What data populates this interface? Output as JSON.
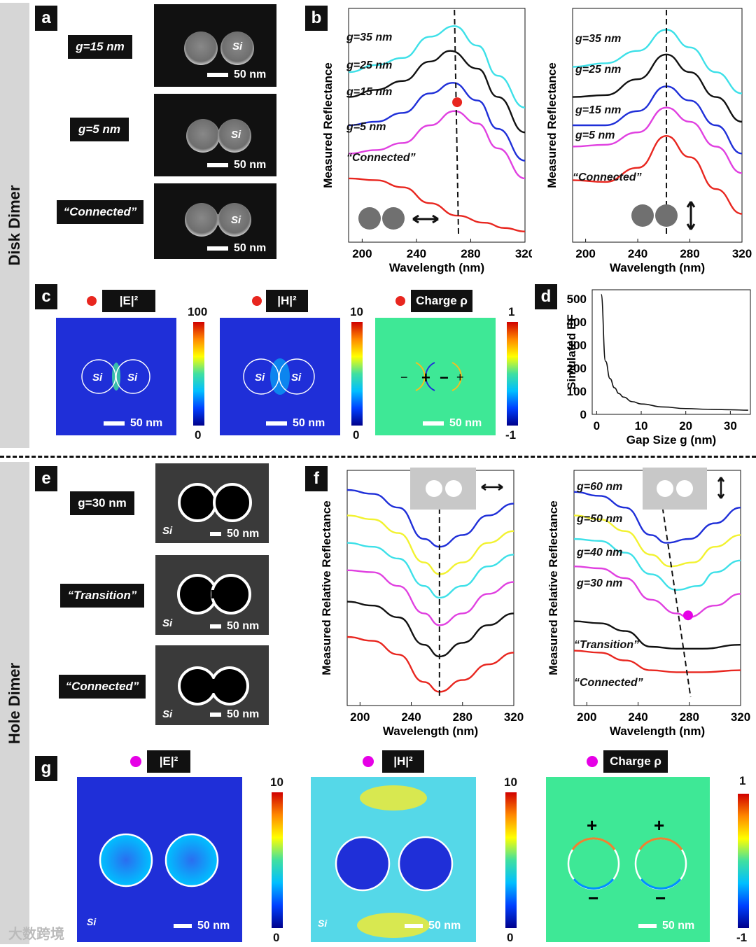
{
  "sections": {
    "top": "Disk Dimer",
    "bottom": "Hole Dimer"
  },
  "panels": {
    "a": "a",
    "b": "b",
    "c": "c",
    "d": "d",
    "e": "e",
    "f": "f",
    "g": "g"
  },
  "a_tags": [
    "g=15 nm",
    "g=5 nm",
    "“Connected”"
  ],
  "si": "Si",
  "scale": "50 nm",
  "e_tags": [
    "g=30 nm",
    "“Transition”",
    "“Connected”"
  ],
  "fields": {
    "e": "|E|²",
    "h": "|H|²",
    "rho": "Charge ρ"
  },
  "c_cbars": [
    {
      "max": "100",
      "min": "0"
    },
    {
      "max": "10",
      "min": "0"
    },
    {
      "max": "1",
      "min": "-1"
    }
  ],
  "g_cbars": [
    {
      "max": "10",
      "min": "0"
    },
    {
      "max": "10",
      "min": "0"
    },
    {
      "max": "1",
      "min": "-1"
    }
  ],
  "charges": {
    "plus": "+",
    "minus": "−"
  },
  "watermark": "大数跨境",
  "colors": {
    "red": "#e8261f",
    "black": "#111111",
    "blue": "#1f2fd8",
    "magenta": "#e040e0",
    "cyan": "#3de0e8",
    "yellow": "#f2f230",
    "dot_c": "#e8261f",
    "dot_g": "#e600e6"
  },
  "chart_data": [
    {
      "type": "line",
      "id": "b-left",
      "xlabel": "Wavelength (nm)",
      "ylabel": "Measured Reflectance",
      "xticks": [
        200,
        240,
        280,
        320
      ],
      "xlim": [
        190,
        320
      ],
      "labels": [
        "g=35 nm",
        "g=25 nm",
        "g=15 nm",
        "g=5 nm",
        "“Connected”"
      ],
      "series": [
        {
          "name": "g=35 nm",
          "color": "cyan",
          "x": [
            190,
            210,
            230,
            250,
            268,
            285,
            300,
            320
          ],
          "y": [
            8.6,
            9.0,
            9.4,
            10.6,
            11.2,
            10.1,
            8.4,
            6.6
          ]
        },
        {
          "name": "g=25 nm",
          "color": "black",
          "x": [
            190,
            210,
            230,
            250,
            265,
            285,
            300,
            320
          ],
          "y": [
            7.2,
            7.6,
            8.1,
            9.2,
            9.8,
            8.8,
            7.2,
            5.2
          ]
        },
        {
          "name": "g=15 nm",
          "color": "blue",
          "x": [
            190,
            210,
            230,
            250,
            267,
            285,
            300,
            320
          ],
          "y": [
            5.6,
            5.8,
            6.3,
            7.4,
            8.0,
            7.0,
            5.4,
            3.6
          ]
        },
        {
          "name": "g=5 nm",
          "color": "magenta",
          "x": [
            190,
            210,
            230,
            250,
            268,
            285,
            300,
            320
          ],
          "y": [
            4.0,
            4.2,
            4.6,
            5.6,
            6.4,
            5.7,
            4.3,
            2.6
          ]
        },
        {
          "name": "“Connected”",
          "color": "red",
          "x": [
            190,
            210,
            230,
            250,
            270,
            290,
            305,
            320
          ],
          "y": [
            2.6,
            2.5,
            2.1,
            1.2,
            0.5,
            0.1,
            -0.2,
            -0.4
          ]
        }
      ],
      "marker": {
        "x": 270,
        "y": 6.9
      },
      "dash_x": [
        268,
        271
      ]
    },
    {
      "type": "line",
      "id": "b-right",
      "xlabel": "Wavelength (nm)",
      "ylabel": "Measured Reflectance",
      "xticks": [
        200,
        240,
        280,
        320
      ],
      "xlim": [
        190,
        320
      ],
      "labels": [
        "g=35 nm",
        "g=25 nm",
        "g=15 nm",
        "g=5 nm",
        "“Connected”"
      ],
      "series": [
        {
          "name": "g=35 nm",
          "color": "cyan",
          "x": [
            190,
            215,
            240,
            262,
            280,
            300,
            320
          ],
          "y": [
            8.9,
            9.1,
            9.8,
            11.0,
            10.0,
            8.6,
            7.4
          ]
        },
        {
          "name": "g=25 nm",
          "color": "black",
          "x": [
            190,
            215,
            240,
            262,
            280,
            300,
            320
          ],
          "y": [
            7.2,
            7.3,
            8.2,
            9.6,
            8.6,
            7.2,
            5.8
          ]
        },
        {
          "name": "g=15 nm",
          "color": "blue",
          "x": [
            190,
            215,
            240,
            262,
            280,
            300,
            320
          ],
          "y": [
            5.6,
            5.6,
            6.4,
            7.8,
            7.0,
            5.6,
            4.0
          ]
        },
        {
          "name": "g=5 nm",
          "color": "magenta",
          "x": [
            190,
            215,
            240,
            262,
            280,
            300,
            320
          ],
          "y": [
            4.4,
            4.5,
            5.2,
            6.6,
            5.8,
            4.4,
            2.9
          ]
        },
        {
          "name": "“Connected”",
          "color": "red",
          "x": [
            190,
            215,
            240,
            262,
            280,
            300,
            320
          ],
          "y": [
            2.5,
            2.4,
            3.2,
            5.0,
            3.8,
            2.0,
            0.6
          ]
        }
      ],
      "dash_x": [
        262,
        262
      ]
    },
    {
      "type": "line",
      "id": "d",
      "xlabel": "Gap Size g (nm)",
      "ylabel": "Simulated EF",
      "xticks": [
        0,
        10,
        20,
        30
      ],
      "yticks": [
        0,
        100,
        200,
        300,
        400,
        500
      ],
      "xlim": [
        -1,
        34.5
      ],
      "ylim": [
        0,
        540
      ],
      "series": [
        {
          "name": "",
          "color": "black",
          "x": [
            1,
            2,
            3,
            4,
            5,
            6,
            8,
            10,
            15,
            20,
            25,
            30,
            34
          ],
          "y": [
            520,
            230,
            155,
            115,
            90,
            75,
            55,
            45,
            32,
            25,
            22,
            20,
            18
          ]
        }
      ]
    },
    {
      "type": "line",
      "id": "f-left",
      "xlabel": "Wavelength (nm)",
      "ylabel": "Measured Relative Reflectance",
      "xticks": [
        200,
        240,
        280,
        320
      ],
      "xlim": [
        190,
        320
      ],
      "series": [
        {
          "name": "",
          "color": "blue",
          "x": [
            190,
            210,
            230,
            250,
            262,
            280,
            300,
            320
          ],
          "y": [
            10.5,
            10.3,
            9.6,
            8.0,
            7.6,
            8.2,
            9.2,
            9.8
          ]
        },
        {
          "name": "",
          "color": "yellow",
          "x": [
            190,
            210,
            230,
            250,
            262,
            280,
            300,
            320
          ],
          "y": [
            9.2,
            9.0,
            8.3,
            6.8,
            6.2,
            6.8,
            7.8,
            8.4
          ]
        },
        {
          "name": "",
          "color": "cyan",
          "x": [
            190,
            210,
            230,
            250,
            262,
            280,
            300,
            320
          ],
          "y": [
            7.8,
            7.6,
            7.0,
            5.6,
            5.0,
            5.6,
            6.6,
            7.2
          ]
        },
        {
          "name": "",
          "color": "magenta",
          "x": [
            190,
            210,
            230,
            250,
            262,
            280,
            300,
            320
          ],
          "y": [
            6.4,
            6.3,
            5.6,
            4.2,
            3.6,
            4.2,
            5.2,
            5.8
          ]
        },
        {
          "name": "",
          "color": "black",
          "x": [
            190,
            210,
            230,
            250,
            262,
            280,
            300,
            320
          ],
          "y": [
            4.8,
            4.6,
            4.0,
            2.6,
            2.0,
            2.7,
            3.6,
            4.2
          ]
        },
        {
          "name": "",
          "color": "red",
          "x": [
            190,
            210,
            230,
            250,
            262,
            280,
            300,
            320
          ],
          "y": [
            3.0,
            2.8,
            2.1,
            0.7,
            0.2,
            0.8,
            1.6,
            2.2
          ]
        }
      ],
      "dash_x": [
        262,
        262
      ]
    },
    {
      "type": "line",
      "id": "f-right",
      "xlabel": "Wavelength (nm)",
      "ylabel": "Measured Relative Reflectance",
      "xticks": [
        200,
        240,
        280,
        320
      ],
      "xlim": [
        190,
        320
      ],
      "labels": [
        "g=60 nm",
        "g=50 nm",
        "g=40 nm",
        "g=30 nm",
        "“Transition”",
        "“Connected”"
      ],
      "series": [
        {
          "name": "g=60 nm",
          "color": "blue",
          "x": [
            190,
            210,
            230,
            250,
            262,
            280,
            300,
            320
          ],
          "y": [
            10.4,
            10.2,
            9.6,
            8.2,
            7.8,
            8.0,
            8.8,
            9.6
          ]
        },
        {
          "name": "g=50 nm",
          "color": "yellow",
          "x": [
            190,
            210,
            230,
            250,
            265,
            283,
            300,
            320
          ],
          "y": [
            9.2,
            9.0,
            8.4,
            7.2,
            6.6,
            6.8,
            7.6,
            8.2
          ]
        },
        {
          "name": "g=40 nm",
          "color": "cyan",
          "x": [
            190,
            210,
            230,
            250,
            270,
            287,
            300,
            320
          ],
          "y": [
            8.0,
            7.9,
            7.3,
            6.2,
            5.4,
            5.6,
            6.3,
            6.9
          ]
        },
        {
          "name": "g=30 nm",
          "color": "magenta",
          "x": [
            190,
            210,
            230,
            250,
            270,
            279,
            300,
            320
          ],
          "y": [
            6.6,
            6.5,
            6.0,
            4.9,
            4.2,
            4.0,
            4.6,
            5.2
          ]
        },
        {
          "name": "“Transition”",
          "color": "black",
          "x": [
            190,
            210,
            230,
            250,
            270,
            290,
            320
          ],
          "y": [
            3.8,
            3.7,
            3.3,
            2.5,
            2.4,
            2.4,
            2.6
          ]
        },
        {
          "name": "“Connected”",
          "color": "red",
          "x": [
            190,
            210,
            230,
            250,
            270,
            290,
            320
          ],
          "y": [
            2.3,
            2.2,
            1.8,
            1.3,
            1.2,
            1.2,
            1.3
          ]
        }
      ],
      "marker": {
        "x": 279,
        "y": 4.1
      },
      "dash_x": [
        255,
        281
      ]
    }
  ]
}
